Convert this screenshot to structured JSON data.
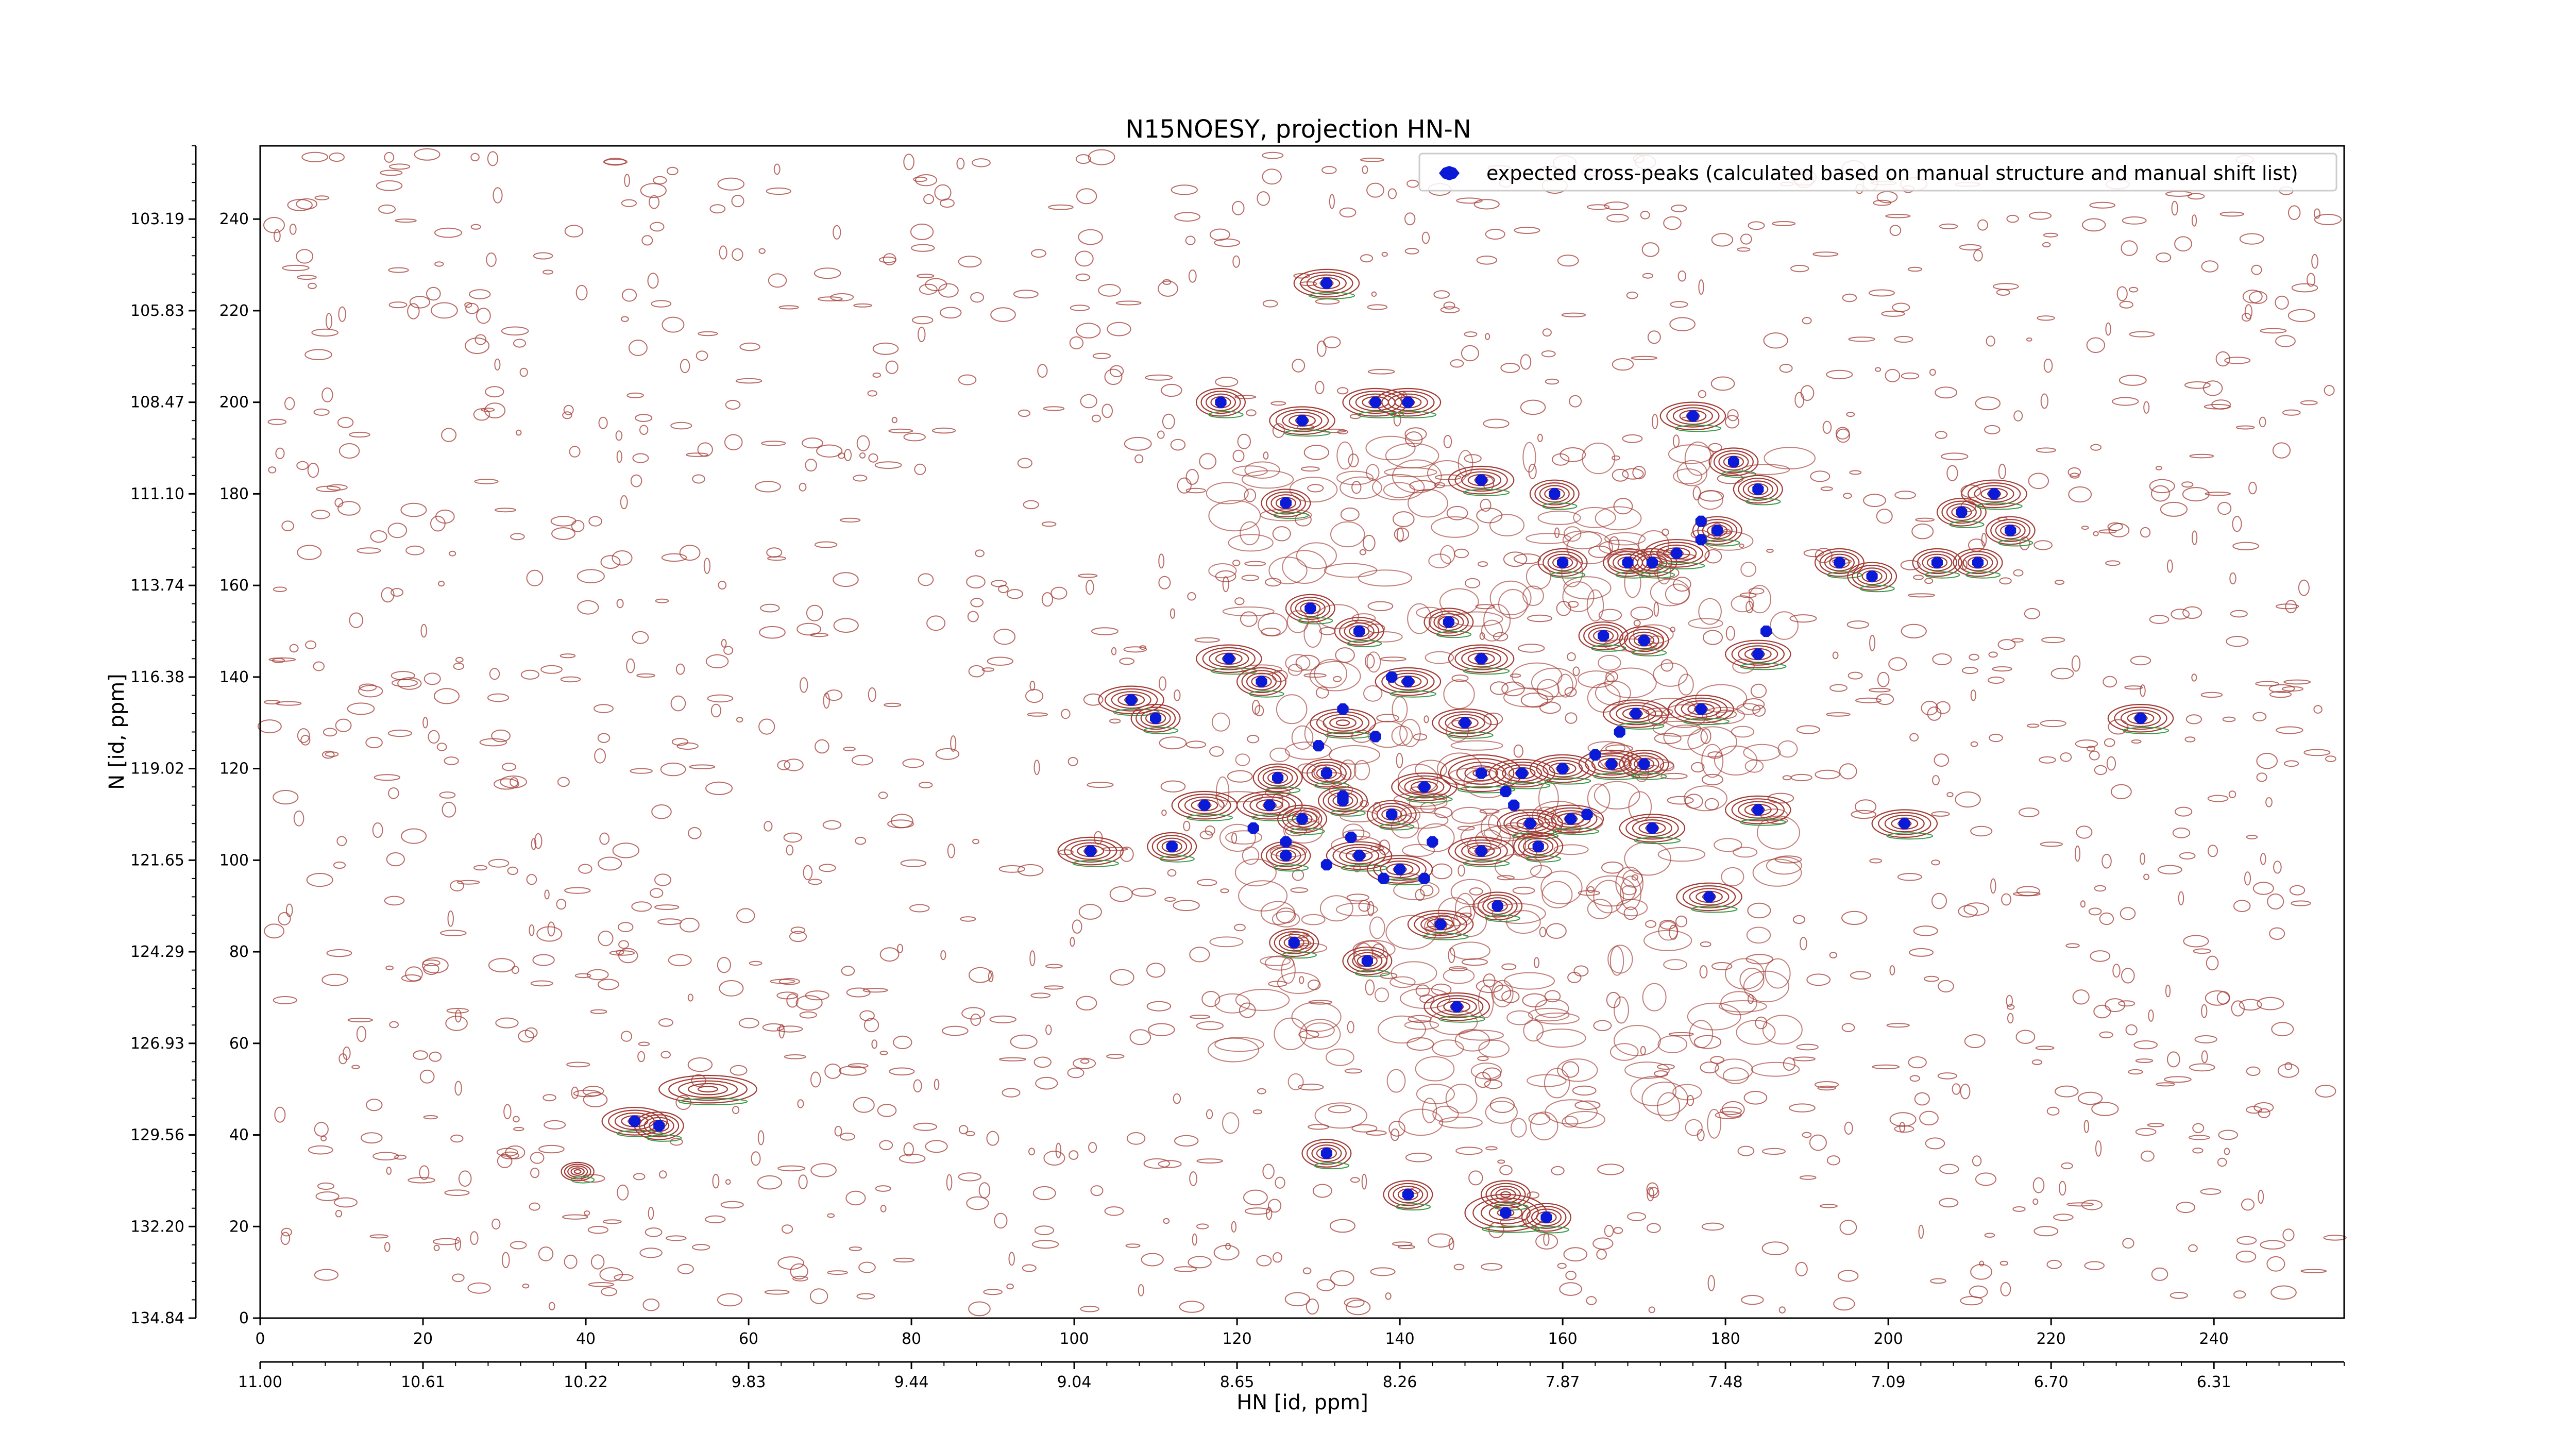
{
  "chart_data": {
    "type": "scatter",
    "title": "N15NOESY, projection HN-N",
    "xlabel": "HN [id, ppm]",
    "ylabel": "N [id, ppm]",
    "legend": {
      "placement": "top-right",
      "label": "expected cross-peaks (calculated based on manual structure and manual shift list)"
    },
    "grid": false,
    "xlim": [
      0,
      256
    ],
    "ylim": [
      0,
      256
    ],
    "x_ticks_index": [
      "0",
      "20",
      "40",
      "60",
      "80",
      "100",
      "120",
      "140",
      "160",
      "180",
      "200",
      "220",
      "240"
    ],
    "x_ticks_ppm": [
      "11.00",
      "10.61",
      "10.22",
      "9.83",
      "9.44",
      "9.04",
      "8.65",
      "8.26",
      "7.87",
      "7.48",
      "7.09",
      "6.70",
      "6.31"
    ],
    "y_ticks_index": [
      "0",
      "20",
      "40",
      "60",
      "80",
      "100",
      "120",
      "140",
      "160",
      "180",
      "200",
      "220",
      "240"
    ],
    "y_ticks_ppm": [
      "134.84",
      "132.20",
      "129.56",
      "126.93",
      "124.29",
      "121.65",
      "119.02",
      "116.38",
      "113.74",
      "111.10",
      "108.47",
      "105.83",
      "103.19"
    ],
    "colors": {
      "positive_contour": "#a33a33",
      "negative_contour": "#3a9a4a",
      "peak_marker": "#0a1ad6",
      "axis": "#000000"
    },
    "contour_blobs": [
      [
        131,
        226,
        4,
        3
      ],
      [
        118,
        200,
        3,
        3
      ],
      [
        128,
        196,
        4,
        3
      ],
      [
        137,
        200,
        4,
        3
      ],
      [
        141,
        200,
        4,
        3
      ],
      [
        126,
        178,
        3,
        3
      ],
      [
        150,
        183,
        4,
        3
      ],
      [
        159,
        180,
        3,
        3
      ],
      [
        176,
        197,
        4,
        3
      ],
      [
        181,
        187,
        3,
        3
      ],
      [
        184,
        181,
        3,
        3
      ],
      [
        160,
        165,
        3,
        3
      ],
      [
        168,
        165,
        3,
        3
      ],
      [
        171,
        165,
        3,
        3
      ],
      [
        174,
        167,
        4,
        3
      ],
      [
        179,
        172,
        3,
        3
      ],
      [
        194,
        165,
        3,
        3
      ],
      [
        198,
        162,
        3,
        3
      ],
      [
        206,
        165,
        3,
        3
      ],
      [
        209,
        176,
        3,
        3
      ],
      [
        211,
        165,
        3,
        3
      ],
      [
        213,
        180,
        4,
        3
      ],
      [
        215,
        172,
        3,
        3
      ],
      [
        129,
        155,
        3,
        3
      ],
      [
        135,
        150,
        3,
        3
      ],
      [
        146,
        152,
        3,
        3
      ],
      [
        165,
        149,
        3,
        3
      ],
      [
        170,
        148,
        3,
        3
      ],
      [
        184,
        145,
        4,
        3
      ],
      [
        119,
        144,
        4,
        3
      ],
      [
        123,
        139,
        3,
        3
      ],
      [
        107,
        135,
        4,
        3
      ],
      [
        110,
        131,
        3,
        3
      ],
      [
        150,
        144,
        4,
        3
      ],
      [
        148,
        130,
        4,
        3
      ],
      [
        141,
        139,
        4,
        3
      ],
      [
        133,
        130,
        4,
        3
      ],
      [
        169,
        132,
        4,
        3
      ],
      [
        177,
        133,
        4,
        3
      ],
      [
        231,
        131,
        4,
        3
      ],
      [
        150,
        119,
        5,
        4
      ],
      [
        155,
        119,
        4,
        3
      ],
      [
        160,
        120,
        4,
        3
      ],
      [
        166,
        121,
        4,
        3
      ],
      [
        170,
        121,
        3,
        3
      ],
      [
        143,
        116,
        4,
        3
      ],
      [
        131,
        119,
        3,
        3
      ],
      [
        125,
        118,
        3,
        3
      ],
      [
        116,
        112,
        4,
        3
      ],
      [
        124,
        112,
        4,
        3
      ],
      [
        128,
        109,
        3,
        3
      ],
      [
        133,
        113,
        3,
        3
      ],
      [
        139,
        110,
        3,
        3
      ],
      [
        156,
        108,
        4,
        3
      ],
      [
        161,
        109,
        4,
        3
      ],
      [
        171,
        107,
        4,
        3
      ],
      [
        184,
        111,
        4,
        3
      ],
      [
        202,
        108,
        4,
        3
      ],
      [
        102,
        102,
        4,
        3
      ],
      [
        112,
        103,
        3,
        3
      ],
      [
        126,
        101,
        3,
        3
      ],
      [
        135,
        101,
        4,
        3
      ],
      [
        140,
        98,
        4,
        3
      ],
      [
        150,
        102,
        4,
        3
      ],
      [
        157,
        103,
        3,
        3
      ],
      [
        178,
        92,
        4,
        3
      ],
      [
        145,
        86,
        4,
        3
      ],
      [
        152,
        90,
        3,
        3
      ],
      [
        127,
        82,
        3,
        3
      ],
      [
        136,
        78,
        3,
        3
      ],
      [
        147,
        68,
        4,
        3
      ],
      [
        131,
        36,
        3,
        3
      ],
      [
        141,
        27,
        3,
        3
      ],
      [
        153,
        23,
        5,
        4
      ],
      [
        158,
        22,
        3,
        3
      ],
      [
        153,
        27,
        3,
        3
      ],
      [
        46,
        43,
        4,
        3
      ],
      [
        49,
        42,
        3,
        3
      ],
      [
        39,
        32,
        2,
        2
      ],
      [
        55,
        50,
        6,
        3
      ]
    ],
    "x": [
      131,
      118,
      128,
      137,
      141,
      126,
      150,
      159,
      176,
      181,
      184,
      160,
      168,
      171,
      174,
      179,
      194,
      198,
      206,
      209,
      211,
      213,
      215,
      177,
      177,
      129,
      135,
      146,
      165,
      170,
      184,
      119,
      123,
      107,
      110,
      150,
      148,
      141,
      133,
      169,
      177,
      231,
      150,
      155,
      160,
      166,
      170,
      143,
      131,
      125,
      116,
      124,
      128,
      133,
      139,
      156,
      161,
      171,
      184,
      202,
      102,
      112,
      126,
      135,
      140,
      150,
      157,
      178,
      145,
      152,
      127,
      136,
      147,
      131,
      141,
      153,
      158,
      46,
      49,
      130,
      137,
      139,
      134,
      138,
      144,
      153,
      122,
      126,
      131,
      163,
      143,
      133,
      167,
      185,
      164,
      154
    ],
    "y": [
      226,
      200,
      196,
      200,
      200,
      178,
      183,
      180,
      197,
      187,
      181,
      165,
      165,
      165,
      167,
      172,
      165,
      162,
      165,
      176,
      165,
      180,
      172,
      170,
      174,
      155,
      150,
      152,
      149,
      148,
      145,
      144,
      139,
      135,
      131,
      144,
      130,
      139,
      133,
      132,
      133,
      131,
      119,
      119,
      120,
      121,
      121,
      116,
      119,
      118,
      112,
      112,
      109,
      113,
      110,
      108,
      109,
      107,
      111,
      108,
      102,
      103,
      101,
      101,
      98,
      102,
      103,
      92,
      86,
      90,
      82,
      78,
      68,
      36,
      27,
      23,
      22,
      43,
      42,
      125,
      127,
      140,
      105,
      96,
      104,
      115,
      107,
      104,
      99,
      110,
      96,
      114,
      128,
      150,
      123,
      112
    ]
  }
}
